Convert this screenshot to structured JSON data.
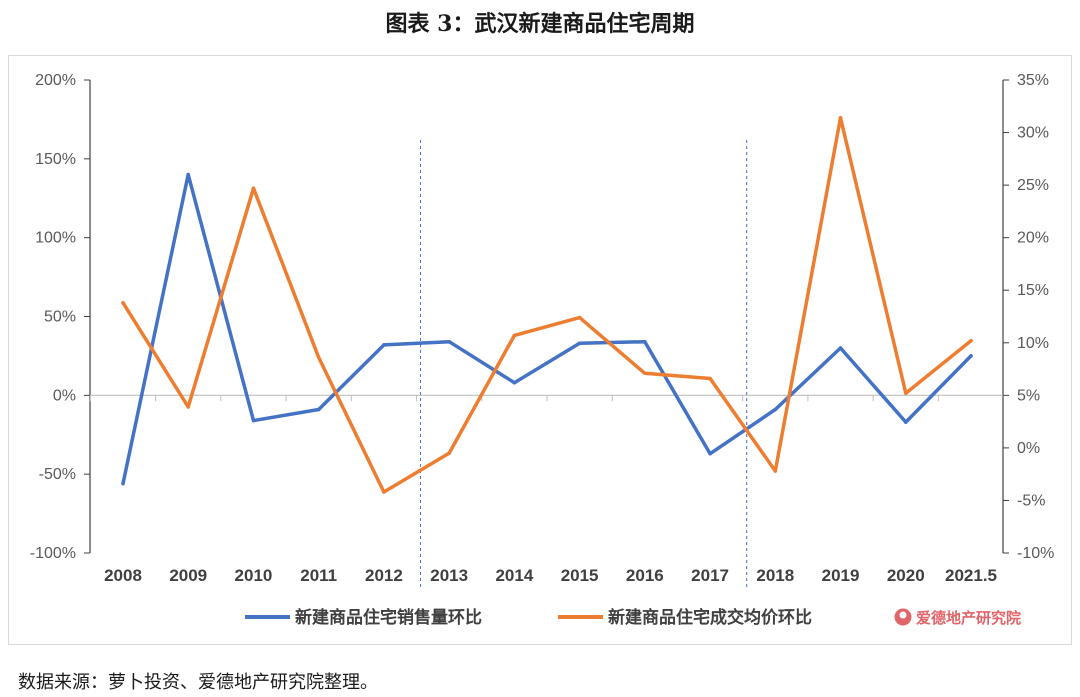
{
  "title": "图表 3：武汉新建商品住宅周期",
  "source_note": "数据来源：萝卜投资、爱德地产研究院整理。",
  "watermark": {
    "text": "爱德地产研究院",
    "color": "#e0656a"
  },
  "chart_data": {
    "type": "line",
    "categories": [
      "2008",
      "2009",
      "2010",
      "2011",
      "2012",
      "2013",
      "2014",
      "2015",
      "2016",
      "2017",
      "2018",
      "2019",
      "2020",
      "2021.5"
    ],
    "left_axis": {
      "ticks": [
        "200%",
        "150%",
        "100%",
        "50%",
        "0%",
        "-50%",
        "-100%"
      ],
      "range": [
        -100,
        200
      ]
    },
    "right_axis": {
      "ticks": [
        "35%",
        "30%",
        "25%",
        "20%",
        "15%",
        "10%",
        "5%",
        "0%",
        "-5%",
        "-10%"
      ],
      "range": [
        -10,
        35
      ]
    },
    "reference_categories": [
      "2013",
      "2018"
    ],
    "series": [
      {
        "name": "新建商品住宅销售量环比",
        "axis": "left",
        "color": "#4472c4",
        "values": [
          -56,
          140,
          -16,
          -9,
          32,
          34,
          8,
          33,
          34,
          -37,
          -9,
          30,
          -17,
          25
        ]
      },
      {
        "name": "新建商品住宅成交均价环比",
        "axis": "right",
        "color": "#ed7d31",
        "values": [
          13.8,
          3.9,
          24.7,
          8.6,
          -4.2,
          -0.5,
          10.7,
          12.4,
          7.1,
          6.6,
          -2.2,
          31.4,
          5.2,
          10.2
        ]
      }
    ]
  }
}
